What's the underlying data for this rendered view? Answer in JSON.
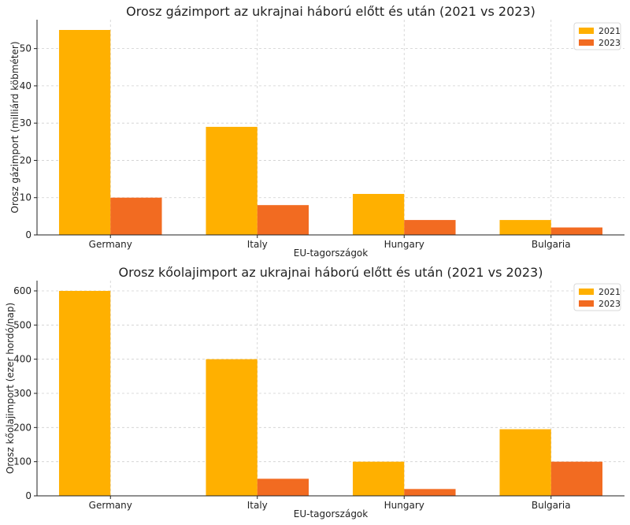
{
  "colors": {
    "2021": "#FFB000",
    "2023": "#F26B21"
  },
  "chart_data": [
    {
      "type": "bar",
      "title": "Orosz gázimport az ukrajnai háború előtt és után (2021 vs 2023)",
      "xlabel": "EU-tagországok",
      "ylabel": "Orosz gázimport (milliárd köbméter)",
      "categories": [
        "Germany",
        "Italy",
        "Hungary",
        "Bulgaria"
      ],
      "series": [
        {
          "name": "2021",
          "values": [
            55,
            29,
            11,
            4
          ]
        },
        {
          "name": "2023",
          "values": [
            10,
            8,
            4,
            2
          ]
        }
      ],
      "ylim": [
        0,
        57.75
      ],
      "yticks": [
        0,
        10,
        20,
        30,
        40,
        50
      ],
      "grid": true,
      "legend": "top-right"
    },
    {
      "type": "bar",
      "title": "Orosz kőolajimport az ukrajnai háború előtt és után (2021 vs 2023)",
      "xlabel": "EU-tagországok",
      "ylabel": "Orosz kőolajimport (ezer hordó/nap)",
      "categories": [
        "Germany",
        "Italy",
        "Hungary",
        "Bulgaria"
      ],
      "series": [
        {
          "name": "2021",
          "values": [
            600,
            400,
            100,
            195
          ]
        },
        {
          "name": "2023",
          "values": [
            0,
            50,
            20,
            100
          ]
        }
      ],
      "ylim": [
        0,
        630
      ],
      "yticks": [
        0,
        100,
        200,
        300,
        400,
        500,
        600
      ],
      "grid": true,
      "legend": "top-right"
    }
  ]
}
